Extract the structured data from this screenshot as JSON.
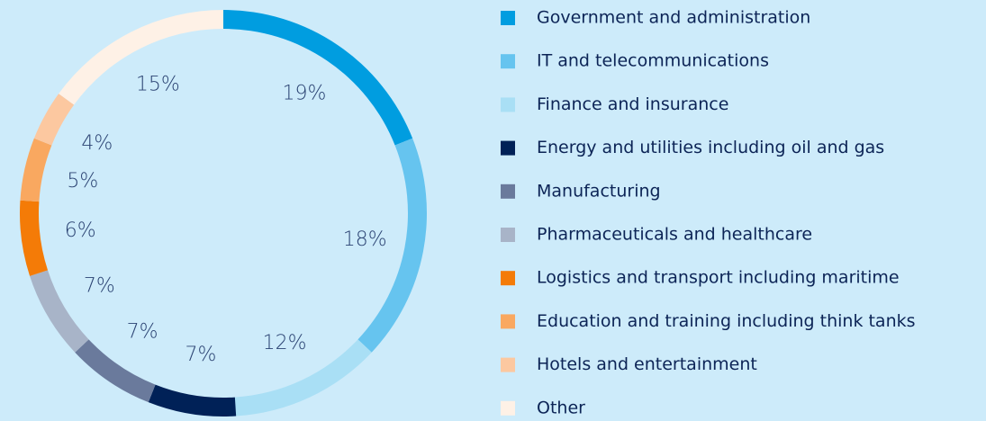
{
  "chart_data": {
    "type": "donut",
    "categories": [
      "Government and administration",
      "IT and telecommunications",
      "Finance and insurance",
      "Energy and utilities including oil and gas",
      "Manufacturing",
      "Pharmaceuticals and healthcare",
      "Logistics and transport including maritime",
      "Education and training including think tanks",
      "Hotels and entertainment",
      "Other"
    ],
    "values": [
      19,
      18,
      12,
      7,
      7,
      7,
      6,
      5,
      4,
      15
    ],
    "value_labels": [
      "19%",
      "18%",
      "12%",
      "7%",
      "7%",
      "7%",
      "6%",
      "5%",
      "4%",
      "15%"
    ],
    "colors": [
      "#009de0",
      "#66c4ef",
      "#a9dff5",
      "#002157",
      "#6a7a9c",
      "#a8b4c8",
      "#f47b07",
      "#f9a860",
      "#fcc8a0",
      "#fef1e6"
    ]
  }
}
